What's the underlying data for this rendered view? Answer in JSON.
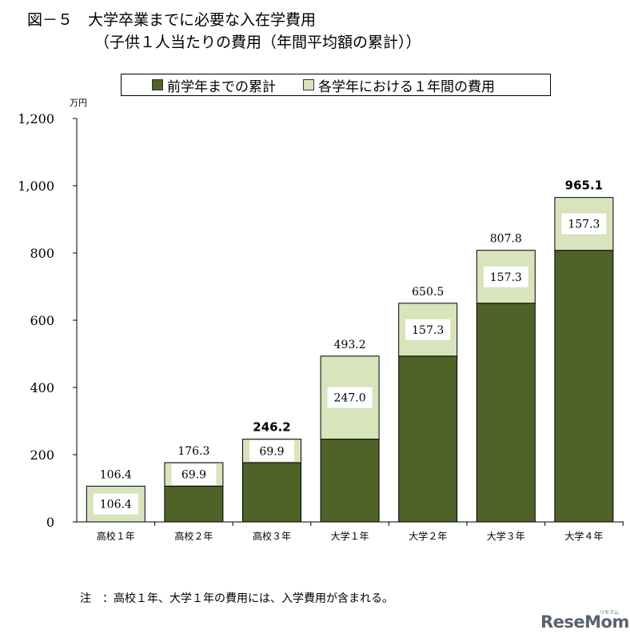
{
  "title_line1": "図－５　大学卒業までに必要な入在学費用",
  "title_line2": "（子供１人当たりの費用（年間平均額の累計））",
  "note": "注　：高校１年、大学１年の費用には、入学費用が含まれる。",
  "logo": "ReseMom",
  "logo_sub": "リセマム",
  "colors": {
    "cumulative": "#4f6228",
    "annual": "#d7e4bc"
  },
  "chart_data": {
    "type": "bar",
    "stacked": true,
    "ylabel": "万円",
    "ylim": [
      0,
      1200
    ],
    "yticks": [
      0,
      200,
      400,
      600,
      800,
      1000,
      1200
    ],
    "ytick_labels": [
      "0",
      "200",
      "400",
      "600",
      "800",
      "1,000",
      "1,200"
    ],
    "categories": [
      "高校１年",
      "高校２年",
      "高校３年",
      "大学１年",
      "大学２年",
      "大学３年",
      "大学４年"
    ],
    "series": [
      {
        "name": "前学年までの累計",
        "values": [
          0,
          106.4,
          176.3,
          246.2,
          493.2,
          650.5,
          807.8
        ]
      },
      {
        "name": "各学年における１年間の費用",
        "values": [
          106.4,
          69.9,
          69.9,
          247.0,
          157.3,
          157.3,
          157.3
        ]
      }
    ],
    "segment_labels": [
      "106.4",
      "69.9",
      "69.9",
      "247.0",
      "157.3",
      "157.3",
      "157.3"
    ],
    "total_labels": [
      "106.4",
      "176.3",
      "246.2",
      "493.2",
      "650.5",
      "807.8",
      "965.1"
    ],
    "total_bold": [
      false,
      false,
      true,
      false,
      false,
      false,
      true
    ],
    "legend_position": "top"
  }
}
